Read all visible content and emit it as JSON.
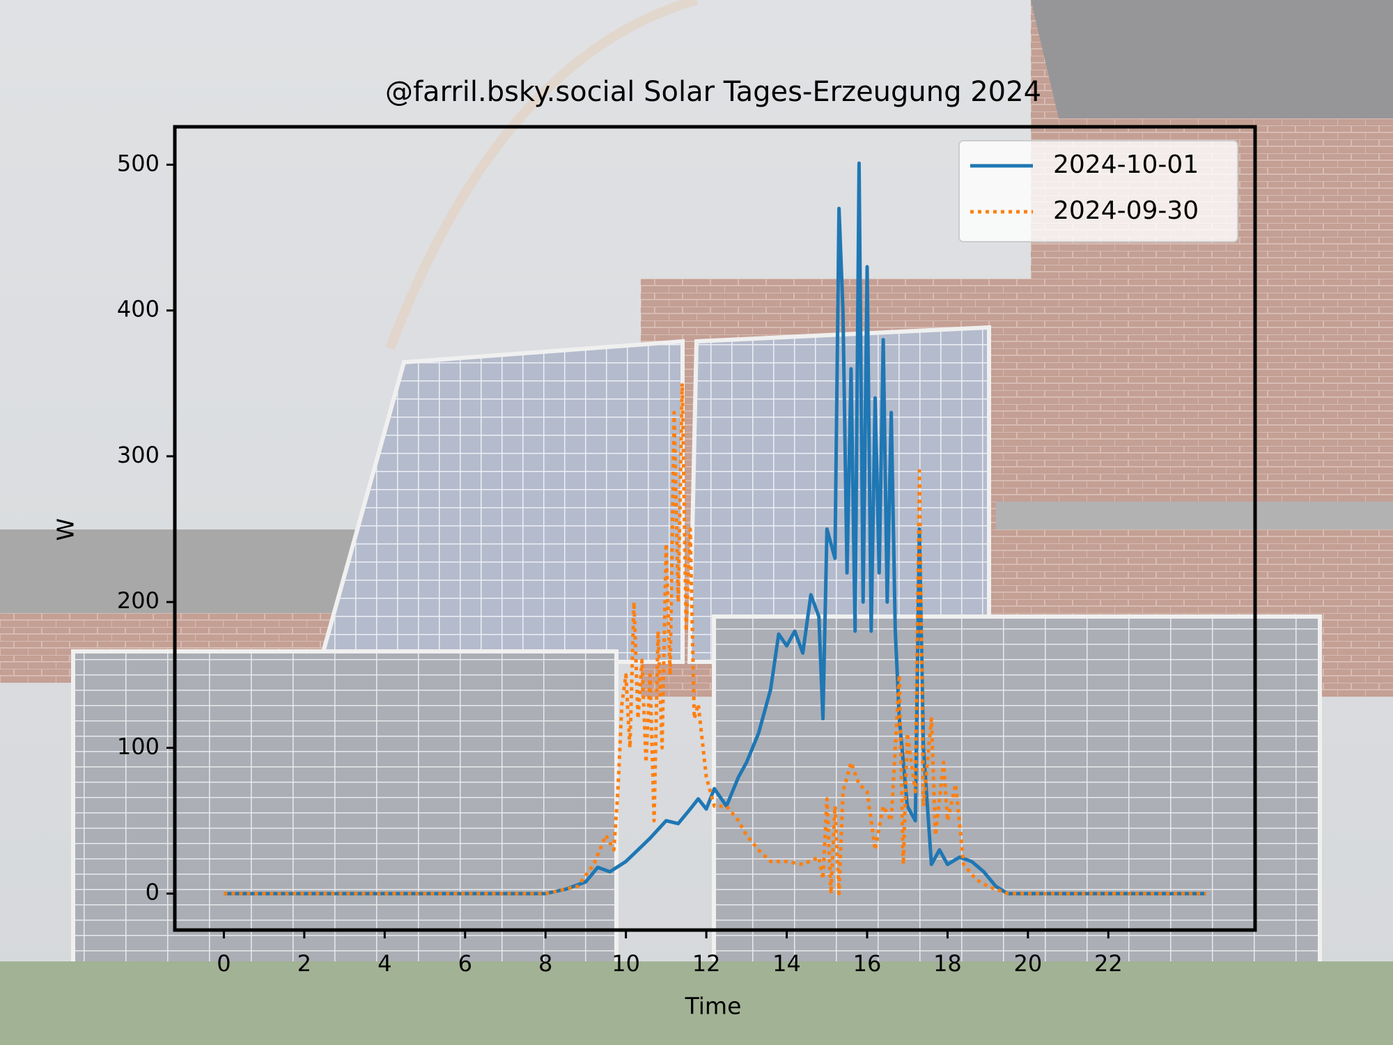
{
  "chart_data": {
    "type": "line",
    "title": "@farril.bsky.social Solar Tages-Erzeugung 2024",
    "x_label": "Time",
    "y_label": "W",
    "xlim": [
      -1.22,
      25.65
    ],
    "ylim": [
      -25,
      526
    ],
    "xticks": [
      0,
      2,
      4,
      6,
      8,
      10,
      12,
      14,
      16,
      18,
      20,
      22
    ],
    "yticks": [
      0,
      100,
      200,
      300,
      400,
      500
    ],
    "legend": "upper right",
    "series": [
      {
        "name": "2024-10-01",
        "color": "#1f77b4",
        "style": "solid",
        "x": [
          0,
          8.0,
          8.5,
          9.0,
          9.3,
          9.6,
          10.0,
          10.3,
          10.6,
          11.0,
          11.3,
          11.6,
          11.8,
          12.0,
          12.2,
          12.5,
          12.8,
          13.0,
          13.3,
          13.6,
          13.8,
          14.0,
          14.2,
          14.4,
          14.6,
          14.8,
          14.9,
          15.0,
          15.2,
          15.3,
          15.4,
          15.5,
          15.6,
          15.7,
          15.8,
          15.9,
          16.0,
          16.1,
          16.2,
          16.3,
          16.4,
          16.5,
          16.6,
          16.7,
          16.8,
          17.0,
          17.2,
          17.3,
          17.4,
          17.6,
          17.8,
          18.0,
          18.3,
          18.6,
          18.9,
          19.2,
          19.5,
          24.43
        ],
        "values": [
          0,
          0,
          3,
          8,
          18,
          15,
          22,
          30,
          38,
          50,
          48,
          58,
          65,
          58,
          72,
          60,
          80,
          90,
          110,
          140,
          178,
          170,
          180,
          165,
          205,
          190,
          120,
          250,
          230,
          470,
          400,
          220,
          360,
          180,
          501,
          200,
          430,
          180,
          340,
          220,
          380,
          200,
          330,
          180,
          120,
          60,
          50,
          250,
          100,
          20,
          30,
          20,
          25,
          22,
          15,
          5,
          0,
          0
        ]
      },
      {
        "name": "2024-09-30",
        "color": "#ff7f0e",
        "style": "dotted",
        "x": [
          0,
          8.0,
          8.8,
          9.2,
          9.5,
          9.7,
          9.8,
          9.9,
          10.0,
          10.1,
          10.2,
          10.3,
          10.4,
          10.5,
          10.6,
          10.7,
          10.8,
          10.9,
          11.0,
          11.1,
          11.2,
          11.3,
          11.4,
          11.5,
          11.6,
          11.7,
          11.8,
          12.0,
          12.2,
          12.5,
          12.8,
          13.0,
          13.3,
          13.6,
          14.0,
          14.4,
          14.8,
          14.9,
          15.0,
          15.1,
          15.2,
          15.3,
          15.4,
          15.6,
          15.8,
          16.0,
          16.2,
          16.4,
          16.6,
          16.8,
          16.9,
          17.0,
          17.2,
          17.3,
          17.4,
          17.6,
          17.7,
          17.9,
          18.0,
          18.2,
          18.4,
          18.7,
          19.0,
          19.5,
          24.43
        ],
        "values": [
          0,
          0,
          5,
          20,
          40,
          30,
          70,
          130,
          150,
          100,
          200,
          120,
          160,
          90,
          150,
          50,
          180,
          100,
          240,
          150,
          330,
          200,
          350,
          180,
          250,
          120,
          130,
          80,
          60,
          60,
          50,
          40,
          30,
          22,
          22,
          20,
          25,
          10,
          65,
          0,
          60,
          0,
          70,
          90,
          75,
          70,
          30,
          60,
          50,
          150,
          20,
          110,
          70,
          290,
          60,
          120,
          40,
          90,
          50,
          75,
          20,
          10,
          5,
          0,
          0
        ]
      }
    ]
  }
}
